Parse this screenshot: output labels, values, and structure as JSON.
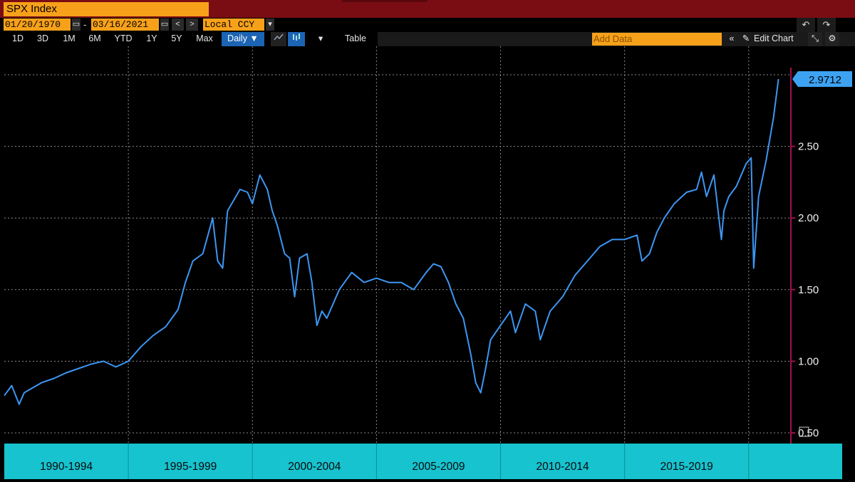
{
  "header": {
    "title": "SPX Index"
  },
  "controls": {
    "start_date": "01/20/1970",
    "end_date": "03/16/2021",
    "dash": "-",
    "currency": "Local CCY",
    "nav_prev": "<",
    "nav_next": ">",
    "undo": "↶",
    "redo": "↷"
  },
  "toolbar": {
    "ranges": [
      "1D",
      "3D",
      "1M",
      "6M",
      "YTD",
      "1Y",
      "5Y",
      "Max"
    ],
    "frequency": "Daily ▼",
    "table_label": "Table",
    "add_data_placeholder": "Add Data",
    "collapse_label": "«",
    "edit_chart_label": "Edit Chart"
  },
  "colors": {
    "line": "#3d96f2",
    "header_bg": "#7a0d14",
    "field_bg": "#f7a11a",
    "axis": "#a3104e",
    "band": "#16c3cf"
  },
  "chart_data": {
    "type": "line",
    "ylim": [
      0.5,
      3.0
    ],
    "yticks": [
      "0.50",
      "1.00",
      "1.50",
      "2.00",
      "2.50"
    ],
    "last_value_label": "2.9712",
    "periods": [
      "1990-1994",
      "1995-1999",
      "2000-2004",
      "2005-2009",
      "2010-2014",
      "2015-2019"
    ],
    "series": [
      {
        "x": [
          1990.0,
          1990.3,
          1990.6,
          1990.8,
          1991.0,
          1991.5,
          1992.0,
          1992.5,
          1993.0,
          1993.5,
          1994.0,
          1994.5,
          1995.0,
          1995.5,
          1996.0,
          1996.5,
          1997.0,
          1997.3,
          1997.6,
          1998.0,
          1998.4,
          1998.6,
          1998.8,
          1999.0,
          1999.5,
          1999.8,
          2000.0,
          2000.3,
          2000.6,
          2000.8,
          2001.0,
          2001.3,
          2001.5,
          2001.7,
          2001.9,
          2002.2,
          2002.4,
          2002.6,
          2002.8,
          2003.0,
          2003.2,
          2003.5,
          2004.0,
          2004.5,
          2005.0,
          2005.5,
          2006.0,
          2006.5,
          2007.0,
          2007.3,
          2007.6,
          2007.9,
          2008.2,
          2008.5,
          2008.8,
          2009.0,
          2009.2,
          2009.4,
          2009.6,
          2010.0,
          2010.4,
          2010.6,
          2011.0,
          2011.4,
          2011.6,
          2011.8,
          2012.0,
          2012.5,
          2013.0,
          2013.5,
          2014.0,
          2014.5,
          2015.0,
          2015.5,
          2015.7,
          2016.0,
          2016.3,
          2016.6,
          2017.0,
          2017.5,
          2017.9,
          2018.1,
          2018.3,
          2018.6,
          2018.9,
          2019.0,
          2019.2,
          2019.5,
          2019.9,
          2020.1,
          2020.2,
          2020.4,
          2020.7,
          2021.0,
          2021.2
        ],
        "y": [
          0.76,
          0.83,
          0.7,
          0.78,
          0.8,
          0.85,
          0.88,
          0.92,
          0.95,
          0.98,
          1.0,
          0.96,
          1.0,
          1.1,
          1.18,
          1.24,
          1.36,
          1.55,
          1.7,
          1.75,
          2.0,
          1.7,
          1.65,
          2.05,
          2.2,
          2.18,
          2.1,
          2.3,
          2.2,
          2.05,
          1.95,
          1.75,
          1.72,
          1.45,
          1.72,
          1.75,
          1.55,
          1.25,
          1.35,
          1.3,
          1.38,
          1.5,
          1.62,
          1.55,
          1.58,
          1.55,
          1.55,
          1.5,
          1.62,
          1.68,
          1.66,
          1.55,
          1.4,
          1.3,
          1.05,
          0.85,
          0.78,
          0.95,
          1.15,
          1.25,
          1.35,
          1.2,
          1.4,
          1.35,
          1.15,
          1.25,
          1.35,
          1.45,
          1.6,
          1.7,
          1.8,
          1.85,
          1.85,
          1.88,
          1.7,
          1.75,
          1.9,
          2.0,
          2.1,
          2.18,
          2.2,
          2.32,
          2.15,
          2.3,
          1.85,
          2.05,
          2.15,
          2.22,
          2.38,
          2.42,
          1.65,
          2.15,
          2.4,
          2.7,
          2.97
        ]
      }
    ]
  }
}
